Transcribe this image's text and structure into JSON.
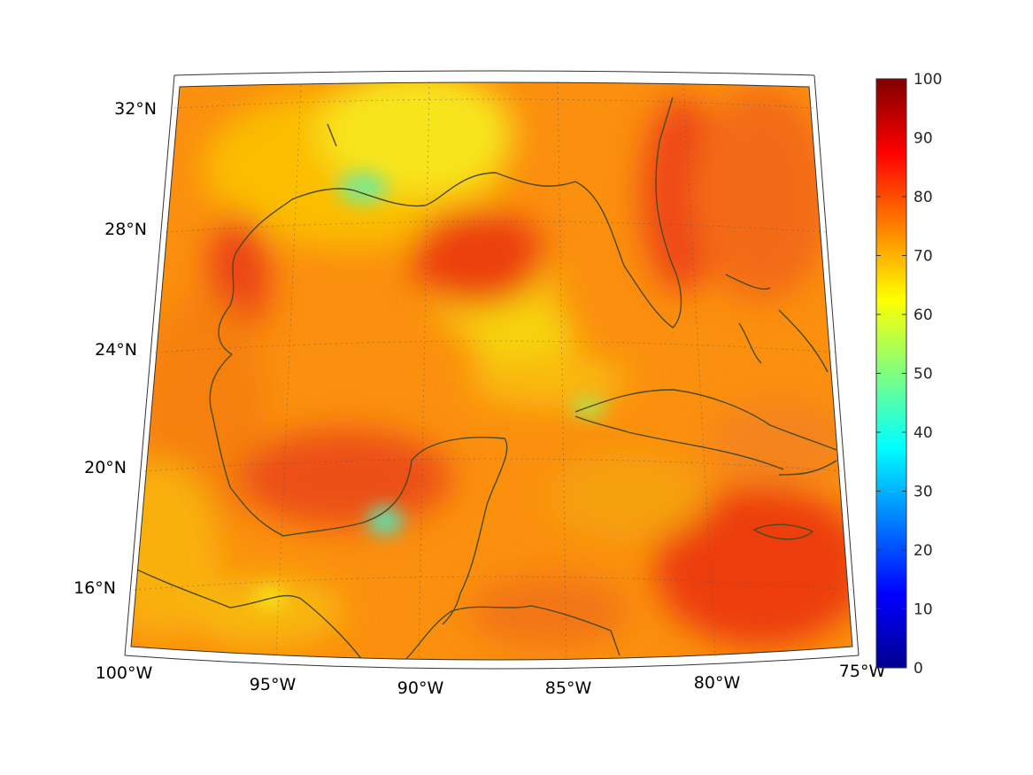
{
  "map": {
    "lon_range": [
      -100,
      -75
    ],
    "lat_range": [
      14,
      33
    ],
    "projection": "conic",
    "lon_labels": [
      "100°W",
      "95°W",
      "90°W",
      "85°W",
      "80°W",
      "75°W"
    ],
    "lat_labels": [
      "32°N",
      "28°N",
      "24°N",
      "20°N",
      "16°N"
    ],
    "field_colormap": "jet",
    "coastline_color": "#4a4a1e"
  },
  "colorbar": {
    "min": 0,
    "max": 100,
    "ticks": [
      "100",
      "90",
      "80",
      "70",
      "60",
      "50",
      "40",
      "30",
      "20",
      "10",
      "0"
    ]
  }
}
